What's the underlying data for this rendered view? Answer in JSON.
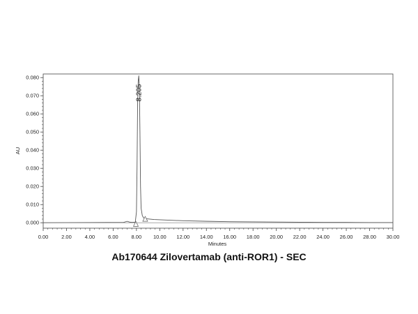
{
  "caption": "Ab170644 Zilovertamab (anti-ROR1) - SEC",
  "chart_data": {
    "type": "line",
    "xlabel": "Minutes",
    "ylabel": "AU",
    "xlim": [
      0,
      30
    ],
    "ylim": [
      -0.003,
      0.082
    ],
    "x_ticks": [
      "0.00",
      "2.00",
      "4.00",
      "6.00",
      "8.00",
      "10.00",
      "12.00",
      "14.00",
      "16.00",
      "18.00",
      "20.00",
      "22.00",
      "24.00",
      "26.00",
      "28.00",
      "30.00"
    ],
    "y_ticks": [
      "0.000",
      "0.010",
      "0.020",
      "0.030",
      "0.040",
      "0.050",
      "0.060",
      "0.070",
      "0.080"
    ],
    "grid": false,
    "line_color": "#555555",
    "series": [
      {
        "x": [
          0,
          6.9,
          7.2,
          7.4,
          7.6,
          7.9,
          8.0,
          8.05,
          8.1,
          8.15,
          8.2,
          8.25,
          8.3,
          8.35,
          8.4,
          8.5,
          8.6,
          8.8,
          9.5,
          10.5,
          12,
          14,
          16,
          18,
          20,
          22,
          24,
          26,
          28,
          30
        ],
        "y": [
          0,
          0.0002,
          0.0008,
          0.0004,
          0.0002,
          0.0003,
          0.006,
          0.03,
          0.066,
          0.078,
          0.081,
          0.075,
          0.05,
          0.02,
          0.008,
          0.004,
          0.0028,
          0.0022,
          0.0018,
          0.0015,
          0.0011,
          0.0008,
          0.0006,
          0.0005,
          0.0004,
          0.0003,
          0.0002,
          0.0002,
          0.0001,
          0.0001
        ]
      }
    ],
    "peak_labels": [
      {
        "x": 8.205,
        "y": 0.0795,
        "text": "8.205"
      }
    ],
    "integration_markers": [
      {
        "x": 7.95,
        "y": -0.002
      },
      {
        "x": 8.75,
        "y": 0.0008
      }
    ]
  }
}
